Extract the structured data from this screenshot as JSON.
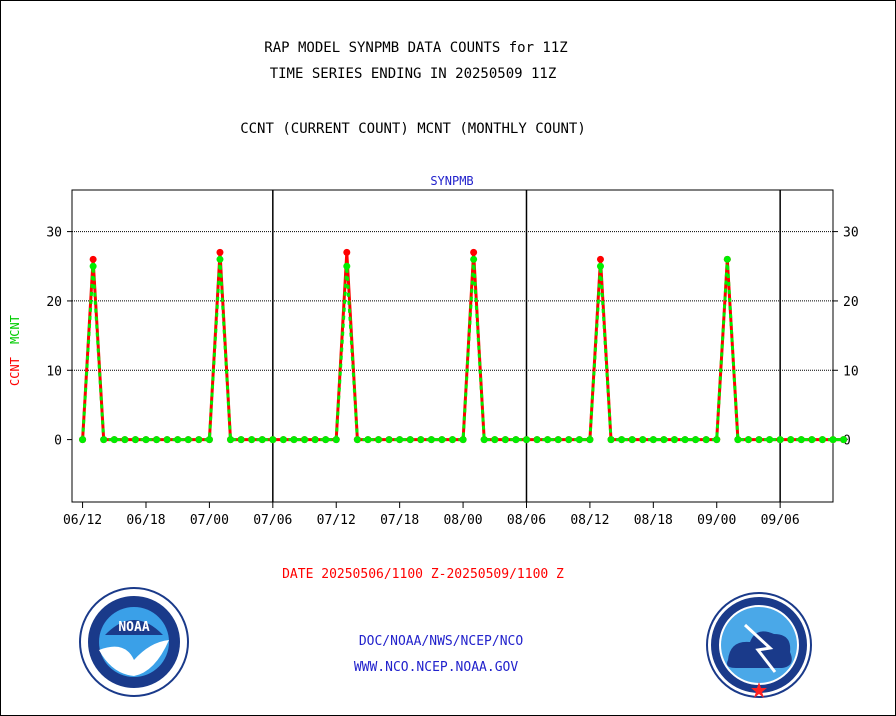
{
  "chart_data": {
    "type": "line",
    "title": "RAP MODEL SYNPMB DATA COUNTS for 11Z",
    "subtitle": "TIME SERIES ENDING IN 20250509 11Z",
    "description": "CCNT (CURRENT COUNT) MCNT (MONTHLY COUNT)",
    "panel_label": "SYNPMB",
    "ylabel_ccnt": "CCNT",
    "ylabel_mcnt": "MCNT",
    "xlabel": "DATE 20250506/1100 Z-20250509/1100 Z",
    "x_tick_labels": [
      "06/12",
      "06/18",
      "07/00",
      "07/06",
      "07/12",
      "07/18",
      "08/00",
      "08/06",
      "08/12",
      "08/18",
      "09/00",
      "09/06"
    ],
    "y_ticks": [
      0,
      10,
      20,
      30
    ],
    "ylim": [
      -9,
      36
    ],
    "xlim": [
      -1,
      71
    ],
    "colors": {
      "ccnt": "#ff0000",
      "mcnt": "#00ee00"
    },
    "series": [
      {
        "name": "CCNT",
        "values": [
          0,
          26,
          0,
          0,
          0,
          0,
          0,
          0,
          0,
          0,
          0,
          0,
          0,
          27,
          0,
          0,
          0,
          0,
          0,
          0,
          0,
          0,
          0,
          0,
          0,
          27,
          0,
          0,
          0,
          0,
          0,
          0,
          0,
          0,
          0,
          0,
          0,
          27,
          0,
          0,
          0,
          0,
          0,
          0,
          0,
          0,
          0,
          0,
          0,
          26,
          0,
          0,
          0,
          0,
          0,
          0,
          0,
          0,
          0,
          0,
          0,
          26,
          0,
          0,
          0,
          0,
          0,
          0,
          0,
          0,
          0,
          0,
          0
        ]
      },
      {
        "name": "MCNT",
        "values": [
          0,
          25,
          0,
          0,
          0,
          0,
          0,
          0,
          0,
          0,
          0,
          0,
          0,
          26,
          0,
          0,
          0,
          0,
          0,
          0,
          0,
          0,
          0,
          0,
          0,
          25,
          0,
          0,
          0,
          0,
          0,
          0,
          0,
          0,
          0,
          0,
          0,
          26,
          0,
          0,
          0,
          0,
          0,
          0,
          0,
          0,
          0,
          0,
          0,
          25,
          0,
          0,
          0,
          0,
          0,
          0,
          0,
          0,
          0,
          0,
          0,
          26,
          0,
          0,
          0,
          0,
          0,
          0,
          0,
          0,
          0,
          0,
          0
        ]
      }
    ]
  },
  "footer": {
    "line1": "DOC/NOAA/NWS/NCEP/NCO",
    "line2": "WWW.NCO.NCEP.NOAA.GOV"
  },
  "logos": {
    "left": {
      "icon": "noaa-logo",
      "text": "NOAA"
    },
    "right": {
      "icon": "nws-logo"
    }
  }
}
